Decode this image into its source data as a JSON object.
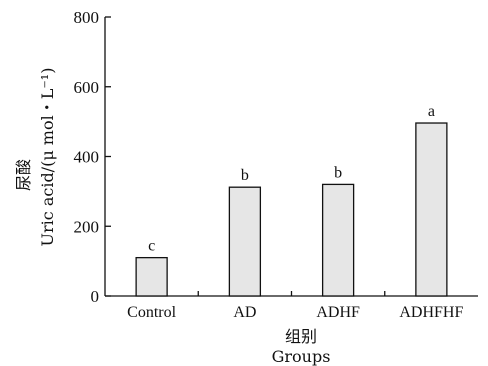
{
  "chart_data": {
    "type": "bar",
    "categories": [
      "Control",
      "AD",
      "ADHF",
      "ADHFHF"
    ],
    "values": [
      110,
      312,
      320,
      496
    ],
    "significance": [
      "c",
      "b",
      "b",
      "a"
    ],
    "ylabel_cn": "尿酸",
    "ylabel_en": "Uric acid/(μ mol・L⁻¹)",
    "xlabel_cn": "组别",
    "xlabel_en": "Groups",
    "ylim": [
      0,
      800
    ],
    "yticks": [
      0,
      200,
      400,
      600,
      800
    ],
    "grid": false,
    "legend": "none",
    "bar_color": "#e6e6e6"
  }
}
